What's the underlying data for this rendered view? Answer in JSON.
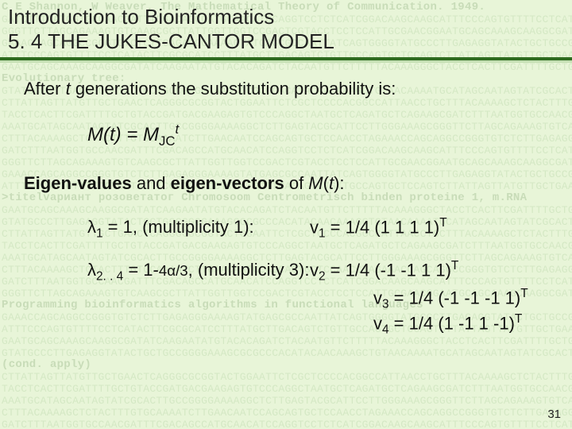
{
  "colors": {
    "slide_bg": "#e8f5d8",
    "bg_text": "#d4e8c4",
    "bg_heading": "#c8dcb8",
    "rule_dark": "#2e6b1f",
    "rule_light": "#c5e0b4",
    "text": "#111111"
  },
  "typography": {
    "title_fontsize_pt": 20,
    "body_fontsize_pt": 17,
    "bg_fontsize_pt": 10,
    "font_family": "Arial"
  },
  "header": {
    "course_title": "Introduction to Bioinformatics",
    "section_title": " 5. 4 THE JUKES-CANTOR MODEL"
  },
  "body": {
    "line1_prefix": "After ",
    "line1_var": "t",
    "line1_suffix": " generations the substitution probability is:",
    "formula_M": "M",
    "formula_open": "(",
    "formula_t": "t",
    "formula_close_eq": ") = ",
    "formula_M2": "M",
    "formula_JC": "JC",
    "formula_exp": "t",
    "eigen_bold": "Eigen-values",
    "eigen_mid": " and ",
    "eigen_bold2": "eigen-vectors",
    "eigen_of": " of ",
    "eigen_Mt_M": "M",
    "eigen_Mt_open": "(",
    "eigen_Mt_t": "t",
    "eigen_Mt_close": "):",
    "lambda1": {
      "sym": "λ",
      "sub": "1",
      "eq": " = 1, (multiplicity 1):",
      "vec_sym": "v",
      "vec_sub": "1",
      "vec_eq": " = 1/4 (1 1 1 1)",
      "vec_T": "T"
    },
    "lambda2": {
      "sym": "λ",
      "sub": "2. . 4",
      "eq_a": " = 1-",
      "eq_b": "4α/3",
      "eq_c": ", (multiplicity 3): ",
      "v2_sym": "v",
      "v2_sub": "2",
      "v2_eq": " = 1/4 (-1 -1 1 1)",
      "v2_T": "T",
      "v3_sym": "v",
      "v3_sub": "3",
      "v3_eq": " = 1/4 (-1 -1 -1 1)",
      "v3_T": "T",
      "v4_sym": "v",
      "v4_sub": "4",
      "v4_eq": " = 1/4 (1 -1 1 -1)",
      "v4_T": "T"
    }
  },
  "page_number": "31",
  "background": {
    "heading1": "C E Shannon, W Weaver, The Mathematical Theory of Communication. 1949.",
    "heading2": ">titelvариант розоветатог Chromosoom Centrometrisch binden proteine 1, m.RNA",
    "heading3": "Programming bioinformatics algorithms in functional languages",
    "seq_rows": [
      "GATCTTTAATGGTGCCAACGATTTCGACAGCCATGCAACATCCAGGTCCTCTCATCGGACAAGCAAGC",
      "GGGTTCTTAGCAGAAAGTGTCAAGCGCTTATTGGTTGGTCCGACTCGTACCTCCTCCATTGCGAACG",
      "GAAACCAGCAGGCCGGGTGTCTCTTGAGAGGGAAAAGTATGAGCGCCAATTATCAGTGGG",
      "ATTTCCCAGTGTTTTCCTCATACTTCGCGCATCCTTTATGCTTGACAGTCTGTTGCCAGTGCTCCAGT",
      "GAATGCAGCAAAGCAAGGCGATATCAAGAATATGTACACAGATCTACAATGTTCTTTTTACAAAGGGC",
      "GTATGCCCTTGAGAGGTATACTGCTGCCGGGGAAAGCGCGCCCACATACAACAAAGCTGTAACA",
      "CTTATTAGTTATGTTGCTGAACTCAGGGCGCGGTACTGGAATTCTCGCTCCCCACGGCCATTAACCTG",
      "TACCTCACTTCGATTTTGCTGTACCGATGACGAAGAGTGTCCCAGGCTAATGCTCAGATGCTCAGAAGC",
      "AAATGCATAGCAATAGTATCGCACTTGCCGGGGAAAAGGCTCTTGAGTACGCATTCCTTGGGAAAGC",
      "CTTTACAAAAGCTCTACTTTGTGCAAAATCTTGAACAATCCAGCAGTGCTCCAACCTA"
    ]
  }
}
